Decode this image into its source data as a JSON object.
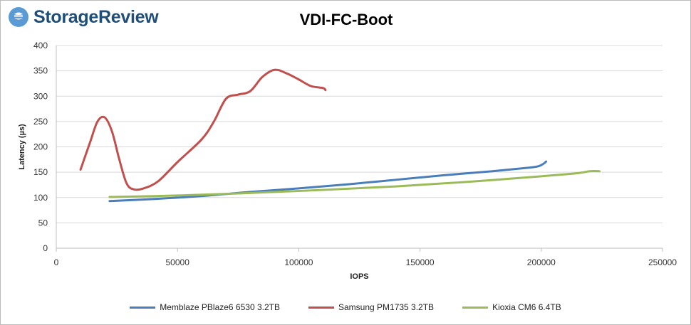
{
  "brand": {
    "name": "StorageReview"
  },
  "colors": {
    "memblaze": "#4a7ebb",
    "samsung": "#c0504d",
    "kioxia": "#9bbb59",
    "grid": "#d9d9d9",
    "brand_blue": "#1f4e79"
  },
  "chart_data": {
    "type": "line",
    "title": "VDI-FC-Boot",
    "xlabel": "IOPS",
    "ylabel": "Latency (µs)",
    "xlim": [
      0,
      250000
    ],
    "ylim": [
      0,
      400
    ],
    "xticks": [
      0,
      50000,
      100000,
      150000,
      200000,
      250000
    ],
    "yticks": [
      0,
      50,
      100,
      150,
      200,
      250,
      300,
      350,
      400
    ],
    "grid": true,
    "legend_position": "bottom",
    "series": [
      {
        "name": "Memblaze PBlaze6 6530 3.2TB",
        "color": "#4a7ebb",
        "points": [
          [
            22000,
            93
          ],
          [
            40000,
            97
          ],
          [
            60000,
            103
          ],
          [
            80000,
            111
          ],
          [
            100000,
            118
          ],
          [
            120000,
            126
          ],
          [
            140000,
            135
          ],
          [
            160000,
            144
          ],
          [
            180000,
            152
          ],
          [
            195000,
            159
          ],
          [
            199000,
            162
          ],
          [
            201000,
            167
          ],
          [
            202000,
            171
          ]
        ]
      },
      {
        "name": "Samsung PM1735 3.2TB",
        "color": "#c0504d",
        "points": [
          [
            10000,
            155
          ],
          [
            14000,
            210
          ],
          [
            17000,
            250
          ],
          [
            20000,
            258
          ],
          [
            23000,
            230
          ],
          [
            26000,
            175
          ],
          [
            29000,
            128
          ],
          [
            32000,
            116
          ],
          [
            36000,
            118
          ],
          [
            42000,
            132
          ],
          [
            50000,
            170
          ],
          [
            60000,
            215
          ],
          [
            65000,
            250
          ],
          [
            70000,
            295
          ],
          [
            75000,
            303
          ],
          [
            80000,
            310
          ],
          [
            85000,
            338
          ],
          [
            90000,
            352
          ],
          [
            95000,
            345
          ],
          [
            100000,
            333
          ],
          [
            105000,
            320
          ],
          [
            110000,
            316
          ],
          [
            111000,
            312
          ]
        ]
      },
      {
        "name": "Kioxia CM6 6.4TB",
        "color": "#9bbb59",
        "points": [
          [
            22000,
            101
          ],
          [
            50000,
            104
          ],
          [
            80000,
            109
          ],
          [
            110000,
            115
          ],
          [
            140000,
            122
          ],
          [
            170000,
            131
          ],
          [
            200000,
            142
          ],
          [
            215000,
            148
          ],
          [
            220000,
            152
          ],
          [
            224000,
            152
          ]
        ]
      }
    ]
  }
}
